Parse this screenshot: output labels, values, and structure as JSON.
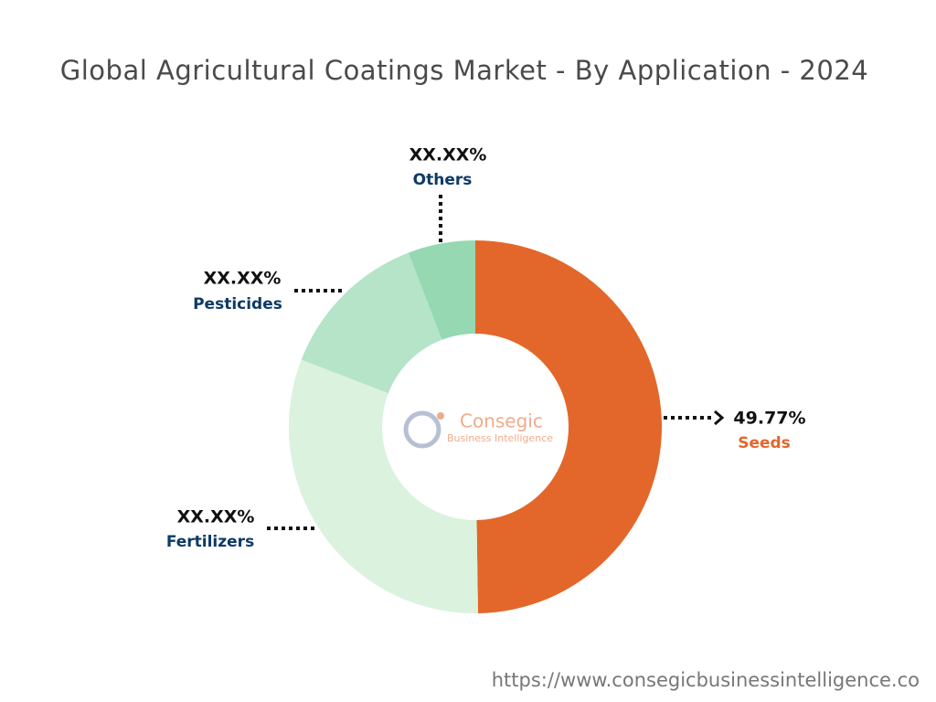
{
  "chart_data": {
    "type": "donut",
    "title": "Global Agricultural Coatings Market - By Application - 2024",
    "categories": [
      "Seeds",
      "Fertilizers",
      "Pesticides",
      "Others"
    ],
    "values": [
      49.77,
      31.1,
      13.3,
      5.83
    ],
    "value_labels": [
      "49.77%",
      "XX.XX%",
      "XX.XX%",
      "XX.XX%"
    ],
    "colors": [
      "#e3672a",
      "#daf2de",
      "#b5e4c8",
      "#95d8b2"
    ],
    "watermark": [
      "Consegic",
      "Business Intelligence"
    ],
    "source": "https://www.consegicbusinessintelligence.co"
  }
}
